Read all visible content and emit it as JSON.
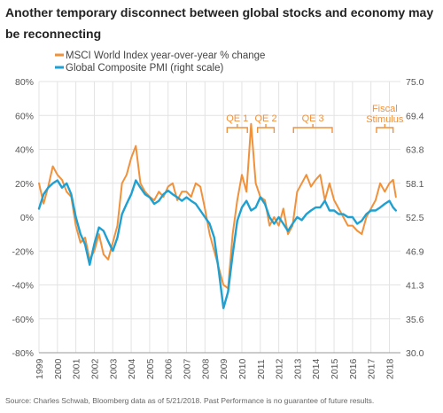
{
  "title": "Another temporary disconnect between global stocks and economy may be reconnecting",
  "source": "Source: Charles Schwab, Bloomberg data as of 5/21/2018.  Past Performance is no guarantee of future results.",
  "colors": {
    "msci": "#f0913c",
    "pmi": "#1fa0d0",
    "grid": "#e3e3e3",
    "axis": "#999999"
  },
  "chart_data": {
    "type": "line",
    "legend": {
      "placement": "top-left",
      "entries": [
        "MSCI World Index year-over-year % change",
        "Global Composite PMI (right scale)"
      ]
    },
    "grid": true,
    "x_ticks": [
      "1999",
      "2000",
      "2001",
      "2002",
      "2003",
      "2004",
      "2005",
      "2006",
      "2007",
      "2008",
      "2009",
      "2010",
      "2011",
      "2012",
      "2013",
      "2014",
      "2015",
      "2016",
      "2017",
      "2018"
    ],
    "xlim": [
      1999.0,
      2018.6
    ],
    "y_left": {
      "ticks": [
        "80%",
        "60%",
        "40%",
        "20%",
        "0%",
        "-20%",
        "-40%",
        "-60%",
        "-80%"
      ],
      "range": [
        -80,
        80
      ]
    },
    "y_right": {
      "ticks": [
        "75.0",
        "69.4",
        "63.8",
        "58.1",
        "52.5",
        "46.9",
        "41.3",
        "35.6",
        "30.0"
      ],
      "range": [
        30.0,
        75.0
      ]
    },
    "annotations": [
      {
        "label": "QE 1",
        "x_start": 2009.2,
        "x_end": 2010.3
      },
      {
        "label": "QE 2",
        "x_start": 2010.85,
        "x_end": 2011.75
      },
      {
        "label": "QE 3",
        "x_start": 2012.8,
        "x_end": 2014.9
      },
      {
        "label": "Fiscal Stimulus",
        "x_start": 2017.3,
        "x_end": 2018.2
      }
    ],
    "series": [
      {
        "name": "MSCI World Index year-over-year % change",
        "axis": "left",
        "x": [
          1999.0,
          1999.25,
          1999.5,
          1999.75,
          2000.0,
          2000.25,
          2000.5,
          2000.75,
          2001.0,
          2001.25,
          2001.5,
          2001.75,
          2002.0,
          2002.25,
          2002.5,
          2002.75,
          2003.0,
          2003.25,
          2003.5,
          2003.75,
          2004.0,
          2004.25,
          2004.5,
          2004.75,
          2005.0,
          2005.25,
          2005.5,
          2005.75,
          2006.0,
          2006.25,
          2006.5,
          2006.75,
          2007.0,
          2007.25,
          2007.5,
          2007.75,
          2008.0,
          2008.25,
          2008.5,
          2008.75,
          2009.0,
          2009.25,
          2009.5,
          2009.75,
          2010.0,
          2010.25,
          2010.5,
          2010.75,
          2011.0,
          2011.25,
          2011.5,
          2011.75,
          2012.0,
          2012.25,
          2012.5,
          2012.75,
          2013.0,
          2013.25,
          2013.5,
          2013.75,
          2014.0,
          2014.25,
          2014.5,
          2014.75,
          2015.0,
          2015.25,
          2015.5,
          2015.75,
          2016.0,
          2016.25,
          2016.5,
          2016.75,
          2017.0,
          2017.25,
          2017.5,
          2017.75,
          2018.0,
          2018.2,
          2018.35
        ],
        "values": [
          20,
          8,
          18,
          30,
          25,
          22,
          15,
          12,
          -5,
          -15,
          -12,
          -25,
          -20,
          -10,
          -22,
          -25,
          -15,
          -5,
          20,
          25,
          35,
          42,
          20,
          15,
          12,
          10,
          15,
          12,
          18,
          20,
          10,
          15,
          15,
          12,
          20,
          18,
          5,
          -10,
          -20,
          -30,
          -40,
          -42,
          -10,
          10,
          25,
          15,
          55,
          20,
          12,
          10,
          -5,
          0,
          -5,
          5,
          -10,
          -5,
          15,
          20,
          25,
          18,
          22,
          25,
          10,
          20,
          10,
          5,
          0,
          -5,
          -5,
          -8,
          -10,
          0,
          5,
          10,
          20,
          15,
          20,
          22,
          12
        ]
      },
      {
        "name": "Global Composite PMI (right scale)",
        "axis": "right",
        "x": [
          1999.0,
          1999.25,
          1999.5,
          1999.75,
          2000.0,
          2000.25,
          2000.5,
          2000.75,
          2001.0,
          2001.25,
          2001.5,
          2001.75,
          2002.0,
          2002.25,
          2002.5,
          2002.75,
          2003.0,
          2003.25,
          2003.5,
          2003.75,
          2004.0,
          2004.25,
          2004.5,
          2004.75,
          2005.0,
          2005.25,
          2005.5,
          2005.75,
          2006.0,
          2006.25,
          2006.5,
          2006.75,
          2007.0,
          2007.25,
          2007.5,
          2007.75,
          2008.0,
          2008.25,
          2008.5,
          2008.75,
          2009.0,
          2009.25,
          2009.5,
          2009.75,
          2010.0,
          2010.25,
          2010.5,
          2010.75,
          2011.0,
          2011.25,
          2011.5,
          2011.75,
          2012.0,
          2012.25,
          2012.5,
          2012.75,
          2013.0,
          2013.25,
          2013.5,
          2013.75,
          2014.0,
          2014.25,
          2014.5,
          2014.75,
          2015.0,
          2015.25,
          2015.5,
          2015.75,
          2016.0,
          2016.25,
          2016.5,
          2016.75,
          2017.0,
          2017.25,
          2017.5,
          2017.75,
          2018.0,
          2018.2,
          2018.35
        ],
        "values": [
          53.9,
          56.3,
          57.4,
          58.1,
          58.6,
          57.4,
          58.1,
          56.3,
          52.5,
          49.7,
          48.0,
          44.6,
          48.0,
          50.8,
          50.2,
          48.5,
          46.9,
          49.1,
          53.0,
          54.7,
          56.3,
          58.6,
          57.4,
          56.3,
          55.8,
          54.7,
          55.2,
          56.3,
          56.9,
          56.3,
          55.8,
          55.2,
          55.8,
          55.2,
          54.7,
          53.6,
          52.5,
          51.4,
          49.1,
          43.5,
          37.4,
          40.1,
          46.3,
          51.9,
          54.1,
          55.2,
          53.6,
          54.1,
          55.8,
          54.7,
          52.5,
          51.4,
          52.5,
          51.4,
          50.2,
          51.4,
          52.5,
          52.0,
          53.0,
          53.6,
          54.1,
          54.1,
          55.2,
          53.6,
          53.6,
          53.0,
          53.0,
          52.5,
          52.5,
          51.4,
          51.9,
          53.0,
          53.6,
          53.6,
          54.1,
          54.7,
          55.2,
          54.1,
          53.6
        ]
      }
    ]
  }
}
